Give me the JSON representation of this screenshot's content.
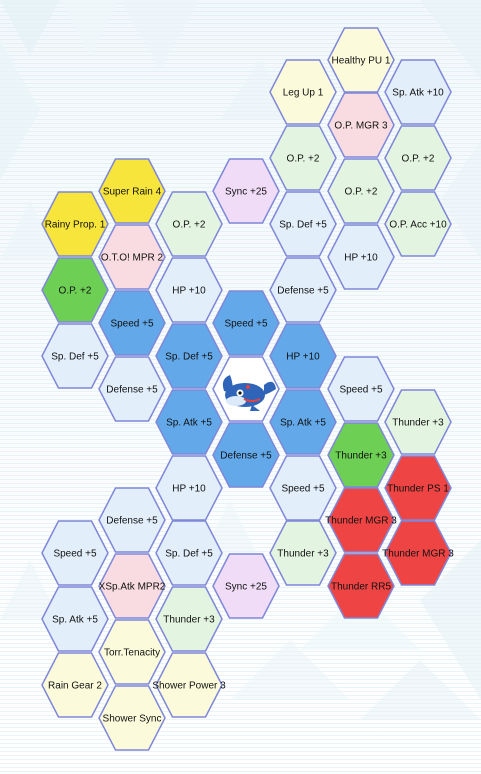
{
  "board": {
    "center_character": "kyogre-icon",
    "tiles": [
      {
        "label": "Healthy PU 1",
        "color": "#fbfbdc"
      },
      {
        "label": "Leg Up 1",
        "color": "#fbfbdc"
      },
      {
        "label": "Sp. Atk +10",
        "color": "#e2eefa"
      },
      {
        "label": "O.P. MGR 3",
        "color": "#f8dce2"
      },
      {
        "label": "O.P. +2",
        "color": "#e3f5e0"
      },
      {
        "label": "O.P. +2",
        "color": "#e3f5e0"
      },
      {
        "label": "Sync +25",
        "color": "#f0dcf7"
      },
      {
        "label": "O.P. +2",
        "color": "#e3f5e0"
      },
      {
        "label": "Super Rain 4",
        "color": "#f7e53b"
      },
      {
        "label": "O.P. +2",
        "color": "#e3f5e0"
      },
      {
        "label": "Sp. Def +5",
        "color": "#e2eefa"
      },
      {
        "label": "O.P. Acc +10",
        "color": "#e3f5e0"
      },
      {
        "label": "Rainy Prop. 1",
        "color": "#f7e53b"
      },
      {
        "label": "O.T.O! MPR 2",
        "color": "#f8dce2"
      },
      {
        "label": "HP +10",
        "color": "#e2eefa"
      },
      {
        "label": "O.P. +2",
        "color": "#6ecf55"
      },
      {
        "label": "HP +10",
        "color": "#e2eefa"
      },
      {
        "label": "Defense +5",
        "color": "#e2eefa"
      },
      {
        "label": "Speed +5",
        "color": "#63a9ea"
      },
      {
        "label": "Speed +5",
        "color": "#63a9ea"
      },
      {
        "label": "Sp. Def +5",
        "color": "#e2eefa"
      },
      {
        "label": "Sp. Def +5",
        "color": "#63a9ea"
      },
      {
        "label": "HP +10",
        "color": "#63a9ea"
      },
      {
        "label": "Defense +5",
        "color": "#e2eefa"
      },
      {
        "label": "Speed +5",
        "color": "#e2eefa"
      },
      {
        "label": "Sp. Atk +5",
        "color": "#63a9ea"
      },
      {
        "label": "Sp. Atk +5",
        "color": "#63a9ea"
      },
      {
        "label": "Thunder +3",
        "color": "#e3f5e0"
      },
      {
        "label": "Defense +5",
        "color": "#63a9ea"
      },
      {
        "label": "Thunder +3",
        "color": "#6ecf55"
      },
      {
        "label": "HP +10",
        "color": "#e2eefa"
      },
      {
        "label": "Speed +5",
        "color": "#e2eefa"
      },
      {
        "label": "Thunder PS 1",
        "color": "#ef4444"
      },
      {
        "label": "Defense +5",
        "color": "#e2eefa"
      },
      {
        "label": "Thunder MGR 3",
        "color": "#ef4444"
      },
      {
        "label": "Speed +5",
        "color": "#e2eefa"
      },
      {
        "label": "Sp. Def +5",
        "color": "#e2eefa"
      },
      {
        "label": "Thunder +3",
        "color": "#e3f5e0"
      },
      {
        "label": "Thunder MGR 3",
        "color": "#ef4444"
      },
      {
        "label": "XSp.Atk MPR2",
        "color": "#f8dce2"
      },
      {
        "label": "Sync +25",
        "color": "#f0dcf7"
      },
      {
        "label": "Thunder RR5",
        "color": "#ef4444"
      },
      {
        "label": "Sp. Atk +5",
        "color": "#e2eefa"
      },
      {
        "label": "Thunder +3",
        "color": "#e3f5e0"
      },
      {
        "label": "Torr.Tenacity",
        "color": "#fbfbdc"
      },
      {
        "label": "Rain Gear 2",
        "color": "#fbfbdc"
      },
      {
        "label": "Shower Power 3",
        "color": "#fbfbdc"
      },
      {
        "label": "Shower Sync",
        "color": "#fbfbdc"
      }
    ]
  },
  "colors": {
    "border": "#7f87d8",
    "text": "#111111"
  }
}
